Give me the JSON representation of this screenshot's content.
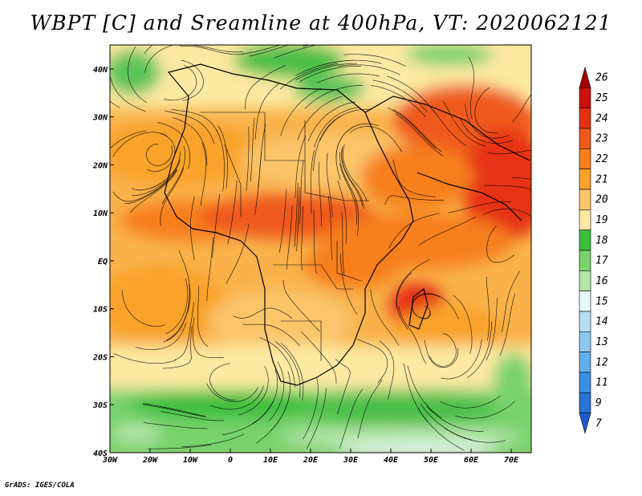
{
  "title": "WBPT [C] and Sreamline at 400hPa, VT: 2020062121",
  "credit": "GrADS: IGES/COLA",
  "map": {
    "lon_range": [
      -30,
      75
    ],
    "lat_range": [
      -40,
      45
    ],
    "x_ticks": [
      {
        "value": -30,
        "label": "30W"
      },
      {
        "value": -20,
        "label": "20W"
      },
      {
        "value": -10,
        "label": "10W"
      },
      {
        "value": 0,
        "label": "0"
      },
      {
        "value": 10,
        "label": "10E"
      },
      {
        "value": 20,
        "label": "20E"
      },
      {
        "value": 30,
        "label": "30E"
      },
      {
        "value": 40,
        "label": "40E"
      },
      {
        "value": 50,
        "label": "50E"
      },
      {
        "value": 60,
        "label": "60E"
      },
      {
        "value": 70,
        "label": "70E"
      }
    ],
    "y_ticks": [
      {
        "value": 40,
        "label": "40N"
      },
      {
        "value": 30,
        "label": "30N"
      },
      {
        "value": 20,
        "label": "20N"
      },
      {
        "value": 10,
        "label": "10N"
      },
      {
        "value": 0,
        "label": "EQ"
      },
      {
        "value": -10,
        "label": "10S"
      },
      {
        "value": -20,
        "label": "20S"
      },
      {
        "value": -30,
        "label": "30S"
      },
      {
        "value": -40,
        "label": "40S"
      }
    ]
  },
  "colorbar": {
    "levels": [
      {
        "label": "26",
        "color": "#a50000"
      },
      {
        "label": "25",
        "color": "#cc1010"
      },
      {
        "label": "24",
        "color": "#e63212"
      },
      {
        "label": "23",
        "color": "#ef5a1a"
      },
      {
        "label": "22",
        "color": "#f77f1c"
      },
      {
        "label": "21",
        "color": "#f9a32a"
      },
      {
        "label": "20",
        "color": "#fbc56a"
      },
      {
        "label": "19",
        "color": "#fde9a2"
      },
      {
        "label": "18",
        "color": "#3cbf3c"
      },
      {
        "label": "17",
        "color": "#78d26e"
      },
      {
        "label": "16",
        "color": "#b4e6a6"
      },
      {
        "label": "15",
        "color": "#e6f8f8"
      },
      {
        "label": "14",
        "color": "#b6dcf6"
      },
      {
        "label": "13",
        "color": "#8ec8f2"
      },
      {
        "label": "12",
        "color": "#62aeea"
      },
      {
        "label": "11",
        "color": "#3c8ee2"
      },
      {
        "label": "9",
        "color": "#2a72d4"
      },
      {
        "label": "7",
        "color": "#1c5ad0"
      }
    ]
  }
}
